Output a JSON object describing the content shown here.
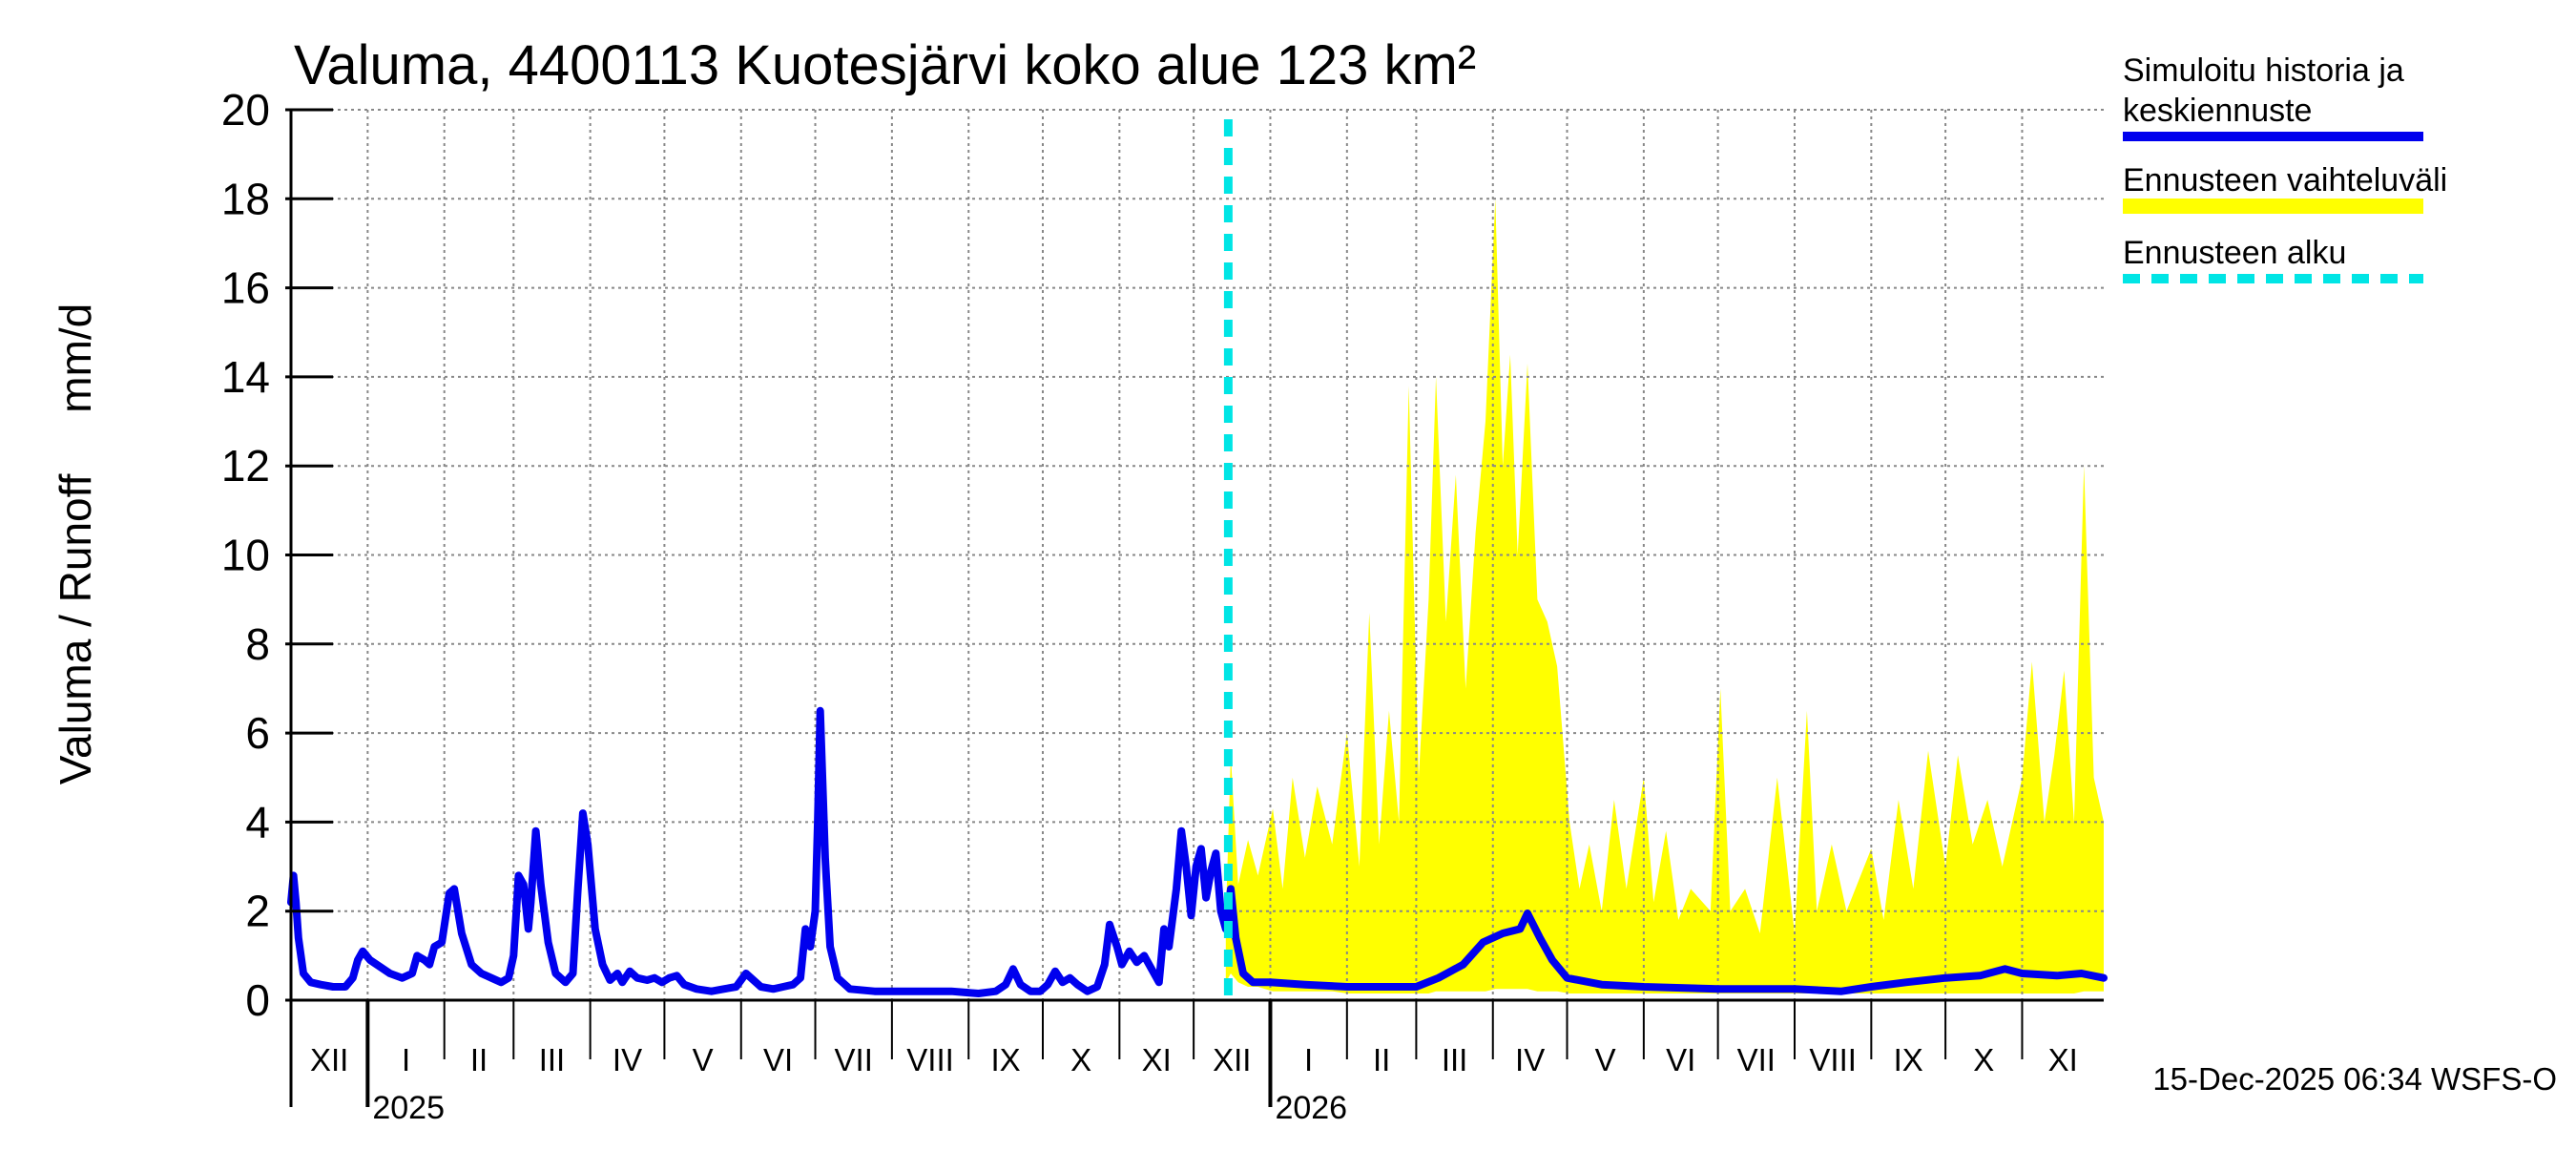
{
  "chart_data": {
    "type": "line",
    "title": "Valuma, 4400113 Kuotesjärvi koko alue 123 km²",
    "ylabel": "Valuma / Runoff     mm/d",
    "ylim": [
      0,
      20
    ],
    "yticks": [
      0,
      2,
      4,
      6,
      8,
      10,
      12,
      14,
      16,
      18,
      20
    ],
    "grid": true,
    "xlim": [
      "2024-12-01",
      "2026-12-04"
    ],
    "months": [
      {
        "label": "XII",
        "start": "2024-12-01"
      },
      {
        "label": "I",
        "start": "2025-01-01"
      },
      {
        "label": "II",
        "start": "2025-02-01"
      },
      {
        "label": "III",
        "start": "2025-03-01"
      },
      {
        "label": "IV",
        "start": "2025-04-01"
      },
      {
        "label": "V",
        "start": "2025-05-01"
      },
      {
        "label": "VI",
        "start": "2025-06-01"
      },
      {
        "label": "VII",
        "start": "2025-07-01"
      },
      {
        "label": "VIII",
        "start": "2025-08-01"
      },
      {
        "label": "IX",
        "start": "2025-09-01"
      },
      {
        "label": "X",
        "start": "2025-10-01"
      },
      {
        "label": "XI",
        "start": "2025-11-01"
      },
      {
        "label": "XII",
        "start": "2025-12-01"
      },
      {
        "label": "I",
        "start": "2026-01-01"
      },
      {
        "label": "II",
        "start": "2026-02-01"
      },
      {
        "label": "III",
        "start": "2026-03-01"
      },
      {
        "label": "IV",
        "start": "2026-04-01"
      },
      {
        "label": "V",
        "start": "2026-05-01"
      },
      {
        "label": "VI",
        "start": "2026-06-01"
      },
      {
        "label": "VII",
        "start": "2026-07-01"
      },
      {
        "label": "VIII",
        "start": "2026-08-01"
      },
      {
        "label": "IX",
        "start": "2026-09-01"
      },
      {
        "label": "X",
        "start": "2026-10-01"
      },
      {
        "label": "XI",
        "start": "2026-11-01"
      }
    ],
    "years": [
      {
        "label": "2025",
        "start": "2025-01-01"
      },
      {
        "label": "2026",
        "start": "2026-01-01"
      }
    ],
    "forecast_start": "2025-12-15",
    "series": [
      {
        "name": "Simuloitu historia ja keskiennuste",
        "color": "#0000ee",
        "points": [
          [
            "2024-12-01",
            2.2
          ],
          [
            "2024-12-02",
            2.8
          ],
          [
            "2024-12-03",
            2.2
          ],
          [
            "2024-12-04",
            1.4
          ],
          [
            "2024-12-06",
            0.6
          ],
          [
            "2024-12-09",
            0.4
          ],
          [
            "2024-12-13",
            0.35
          ],
          [
            "2024-12-18",
            0.3
          ],
          [
            "2024-12-23",
            0.3
          ],
          [
            "2024-12-26",
            0.5
          ],
          [
            "2024-12-28",
            0.9
          ],
          [
            "2024-12-30",
            1.1
          ],
          [
            "2025-01-02",
            0.9
          ],
          [
            "2025-01-06",
            0.75
          ],
          [
            "2025-01-10",
            0.6
          ],
          [
            "2025-01-15",
            0.5
          ],
          [
            "2025-01-19",
            0.6
          ],
          [
            "2025-01-21",
            1.0
          ],
          [
            "2025-01-24",
            0.9
          ],
          [
            "2025-01-26",
            0.8
          ],
          [
            "2025-01-28",
            1.2
          ],
          [
            "2025-01-31",
            1.3
          ],
          [
            "2025-02-03",
            2.4
          ],
          [
            "2025-02-05",
            2.5
          ],
          [
            "2025-02-08",
            1.5
          ],
          [
            "2025-02-12",
            0.8
          ],
          [
            "2025-02-16",
            0.6
          ],
          [
            "2025-02-20",
            0.5
          ],
          [
            "2025-02-24",
            0.4
          ],
          [
            "2025-02-27",
            0.5
          ],
          [
            "2025-03-01",
            1.0
          ],
          [
            "2025-03-03",
            2.8
          ],
          [
            "2025-03-05",
            2.6
          ],
          [
            "2025-03-07",
            1.6
          ],
          [
            "2025-03-08",
            2.2
          ],
          [
            "2025-03-10",
            3.8
          ],
          [
            "2025-03-12",
            2.6
          ],
          [
            "2025-03-15",
            1.3
          ],
          [
            "2025-03-18",
            0.6
          ],
          [
            "2025-03-22",
            0.4
          ],
          [
            "2025-03-25",
            0.6
          ],
          [
            "2025-03-27",
            2.5
          ],
          [
            "2025-03-29",
            4.2
          ],
          [
            "2025-03-31",
            3.5
          ],
          [
            "2025-04-03",
            1.6
          ],
          [
            "2025-04-06",
            0.8
          ],
          [
            "2025-04-09",
            0.45
          ],
          [
            "2025-04-12",
            0.6
          ],
          [
            "2025-04-14",
            0.4
          ],
          [
            "2025-04-17",
            0.65
          ],
          [
            "2025-04-20",
            0.5
          ],
          [
            "2025-04-24",
            0.45
          ],
          [
            "2025-04-27",
            0.5
          ],
          [
            "2025-04-30",
            0.4
          ],
          [
            "2025-05-03",
            0.5
          ],
          [
            "2025-05-06",
            0.55
          ],
          [
            "2025-05-09",
            0.35
          ],
          [
            "2025-05-14",
            0.25
          ],
          [
            "2025-05-20",
            0.2
          ],
          [
            "2025-05-25",
            0.25
          ],
          [
            "2025-05-30",
            0.3
          ],
          [
            "2025-06-03",
            0.6
          ],
          [
            "2025-06-06",
            0.45
          ],
          [
            "2025-06-09",
            0.3
          ],
          [
            "2025-06-14",
            0.25
          ],
          [
            "2025-06-18",
            0.3
          ],
          [
            "2025-06-22",
            0.35
          ],
          [
            "2025-06-25",
            0.5
          ],
          [
            "2025-06-27",
            1.6
          ],
          [
            "2025-06-29",
            1.2
          ],
          [
            "2025-07-01",
            2.0
          ],
          [
            "2025-07-02",
            4.0
          ],
          [
            "2025-07-03",
            6.5
          ],
          [
            "2025-07-05",
            3.2
          ],
          [
            "2025-07-07",
            1.2
          ],
          [
            "2025-07-10",
            0.5
          ],
          [
            "2025-07-15",
            0.25
          ],
          [
            "2025-07-25",
            0.2
          ],
          [
            "2025-08-10",
            0.2
          ],
          [
            "2025-08-25",
            0.2
          ],
          [
            "2025-09-05",
            0.15
          ],
          [
            "2025-09-12",
            0.2
          ],
          [
            "2025-09-16",
            0.35
          ],
          [
            "2025-09-19",
            0.7
          ],
          [
            "2025-09-22",
            0.35
          ],
          [
            "2025-09-26",
            0.2
          ],
          [
            "2025-09-30",
            0.2
          ],
          [
            "2025-10-03",
            0.35
          ],
          [
            "2025-10-06",
            0.65
          ],
          [
            "2025-10-09",
            0.4
          ],
          [
            "2025-10-12",
            0.5
          ],
          [
            "2025-10-15",
            0.35
          ],
          [
            "2025-10-19",
            0.2
          ],
          [
            "2025-10-23",
            0.3
          ],
          [
            "2025-10-26",
            0.8
          ],
          [
            "2025-10-28",
            1.7
          ],
          [
            "2025-10-31",
            1.2
          ],
          [
            "2025-11-02",
            0.8
          ],
          [
            "2025-11-05",
            1.1
          ],
          [
            "2025-11-08",
            0.85
          ],
          [
            "2025-11-11",
            1.0
          ],
          [
            "2025-11-14",
            0.7
          ],
          [
            "2025-11-17",
            0.4
          ],
          [
            "2025-11-19",
            1.6
          ],
          [
            "2025-11-21",
            1.2
          ],
          [
            "2025-11-24",
            2.5
          ],
          [
            "2025-11-26",
            3.8
          ],
          [
            "2025-11-28",
            3.0
          ],
          [
            "2025-11-30",
            1.9
          ],
          [
            "2025-12-02",
            3.0
          ],
          [
            "2025-12-04",
            3.4
          ],
          [
            "2025-12-06",
            2.3
          ],
          [
            "2025-12-08",
            2.9
          ],
          [
            "2025-12-10",
            3.3
          ],
          [
            "2025-12-12",
            2.0
          ],
          [
            "2025-12-14",
            1.6
          ],
          [
            "2025-12-16",
            2.5
          ],
          [
            "2025-12-18",
            1.4
          ],
          [
            "2025-12-21",
            0.6
          ],
          [
            "2025-12-25",
            0.4
          ],
          [
            "2026-01-01",
            0.4
          ],
          [
            "2026-01-15",
            0.35
          ],
          [
            "2026-02-01",
            0.3
          ],
          [
            "2026-02-20",
            0.3
          ],
          [
            "2026-03-01",
            0.3
          ],
          [
            "2026-03-10",
            0.5
          ],
          [
            "2026-03-20",
            0.8
          ],
          [
            "2026-03-28",
            1.3
          ],
          [
            "2026-04-05",
            1.5
          ],
          [
            "2026-04-12",
            1.6
          ],
          [
            "2026-04-15",
            1.95
          ],
          [
            "2026-04-20",
            1.4
          ],
          [
            "2026-04-25",
            0.9
          ],
          [
            "2026-05-01",
            0.5
          ],
          [
            "2026-05-15",
            0.35
          ],
          [
            "2026-06-01",
            0.3
          ],
          [
            "2026-07-01",
            0.25
          ],
          [
            "2026-08-01",
            0.25
          ],
          [
            "2026-08-20",
            0.2
          ],
          [
            "2026-09-01",
            0.3
          ],
          [
            "2026-09-15",
            0.4
          ],
          [
            "2026-10-01",
            0.5
          ],
          [
            "2026-10-15",
            0.55
          ],
          [
            "2026-10-25",
            0.7
          ],
          [
            "2026-11-01",
            0.6
          ],
          [
            "2026-11-15",
            0.55
          ],
          [
            "2026-11-25",
            0.6
          ],
          [
            "2026-12-04",
            0.5
          ]
        ]
      },
      {
        "name": "Ennusteen vaihteluväli",
        "color": "#ffff00",
        "type": "area",
        "points": [
          [
            "2025-12-14",
            0.4,
            1.8
          ],
          [
            "2025-12-16",
            0.6,
            5.5
          ],
          [
            "2025-12-19",
            0.4,
            2.6
          ],
          [
            "2025-12-23",
            0.3,
            3.6
          ],
          [
            "2025-12-27",
            0.3,
            2.8
          ],
          [
            "2026-01-02",
            0.2,
            4.3
          ],
          [
            "2026-01-06",
            0.2,
            2.5
          ],
          [
            "2026-01-10",
            0.2,
            5.0
          ],
          [
            "2026-01-15",
            0.2,
            3.2
          ],
          [
            "2026-01-20",
            0.2,
            4.8
          ],
          [
            "2026-01-26",
            0.2,
            3.5
          ],
          [
            "2026-02-01",
            0.15,
            6.0
          ],
          [
            "2026-02-06",
            0.15,
            3.0
          ],
          [
            "2026-02-10",
            0.15,
            8.7
          ],
          [
            "2026-02-14",
            0.15,
            3.5
          ],
          [
            "2026-02-18",
            0.15,
            6.5
          ],
          [
            "2026-02-22",
            0.15,
            4.0
          ],
          [
            "2026-02-26",
            0.15,
            13.8
          ],
          [
            "2026-03-02",
            0.15,
            5.0
          ],
          [
            "2026-03-06",
            0.15,
            9.0
          ],
          [
            "2026-03-09",
            0.2,
            14.0
          ],
          [
            "2026-03-13",
            0.2,
            8.5
          ],
          [
            "2026-03-17",
            0.2,
            11.8
          ],
          [
            "2026-03-21",
            0.2,
            7.0
          ],
          [
            "2026-03-25",
            0.2,
            10.5
          ],
          [
            "2026-03-29",
            0.2,
            13.0
          ],
          [
            "2026-04-02",
            0.25,
            18.0
          ],
          [
            "2026-04-05",
            0.25,
            12.0
          ],
          [
            "2026-04-08",
            0.25,
            14.5
          ],
          [
            "2026-04-11",
            0.25,
            10.0
          ],
          [
            "2026-04-15",
            0.25,
            14.3
          ],
          [
            "2026-04-19",
            0.2,
            9.0
          ],
          [
            "2026-04-23",
            0.2,
            8.5
          ],
          [
            "2026-04-27",
            0.2,
            7.5
          ],
          [
            "2026-05-02",
            0.15,
            4.0
          ],
          [
            "2026-05-06",
            0.15,
            2.5
          ],
          [
            "2026-05-10",
            0.15,
            3.5
          ],
          [
            "2026-05-15",
            0.15,
            2.0
          ],
          [
            "2026-05-20",
            0.15,
            4.5
          ],
          [
            "2026-05-25",
            0.15,
            2.5
          ],
          [
            "2026-06-01",
            0.15,
            5.0
          ],
          [
            "2026-06-05",
            0.15,
            2.2
          ],
          [
            "2026-06-10",
            0.15,
            3.8
          ],
          [
            "2026-06-15",
            0.15,
            1.8
          ],
          [
            "2026-06-20",
            0.15,
            2.5
          ],
          [
            "2026-06-28",
            0.15,
            2.0
          ],
          [
            "2026-07-02",
            0.15,
            7.0
          ],
          [
            "2026-07-06",
            0.15,
            2.0
          ],
          [
            "2026-07-12",
            0.15,
            2.5
          ],
          [
            "2026-07-18",
            0.15,
            1.5
          ],
          [
            "2026-07-25",
            0.15,
            5.0
          ],
          [
            "2026-08-01",
            0.15,
            1.5
          ],
          [
            "2026-08-06",
            0.15,
            6.5
          ],
          [
            "2026-08-10",
            0.15,
            2.0
          ],
          [
            "2026-08-16",
            0.15,
            3.5
          ],
          [
            "2026-08-22",
            0.15,
            2.0
          ],
          [
            "2026-09-01",
            0.15,
            3.4
          ],
          [
            "2026-09-06",
            0.15,
            1.8
          ],
          [
            "2026-09-12",
            0.15,
            4.5
          ],
          [
            "2026-09-18",
            0.15,
            2.5
          ],
          [
            "2026-09-24",
            0.15,
            5.6
          ],
          [
            "2026-10-01",
            0.15,
            3.0
          ],
          [
            "2026-10-06",
            0.15,
            5.5
          ],
          [
            "2026-10-12",
            0.15,
            3.5
          ],
          [
            "2026-10-18",
            0.15,
            4.5
          ],
          [
            "2026-10-24",
            0.15,
            3.0
          ],
          [
            "2026-11-01",
            0.15,
            5.0
          ],
          [
            "2026-11-05",
            0.15,
            7.6
          ],
          [
            "2026-11-10",
            0.15,
            4.0
          ],
          [
            "2026-11-14",
            0.15,
            5.5
          ],
          [
            "2026-11-18",
            0.15,
            7.4
          ],
          [
            "2026-11-22",
            0.15,
            4.0
          ],
          [
            "2026-11-26",
            0.2,
            12.0
          ],
          [
            "2026-11-30",
            0.2,
            5.0
          ],
          [
            "2026-12-04",
            0.2,
            4.0
          ]
        ]
      },
      {
        "name": "Ennusteen alku",
        "color": "#00e5e5",
        "type": "vline"
      }
    ],
    "legend_position": "right",
    "legend": [
      {
        "text": "Simuloitu historia ja",
        "style": "blue-line",
        "text2": "keskiennuste"
      },
      {
        "text": "Ennusteen vaihteluväli",
        "style": "yellow-band"
      },
      {
        "text": "Ennusteen alku",
        "style": "cyan-dash"
      }
    ],
    "footer": "15-Dec-2025 06:34 WSFS-O"
  }
}
